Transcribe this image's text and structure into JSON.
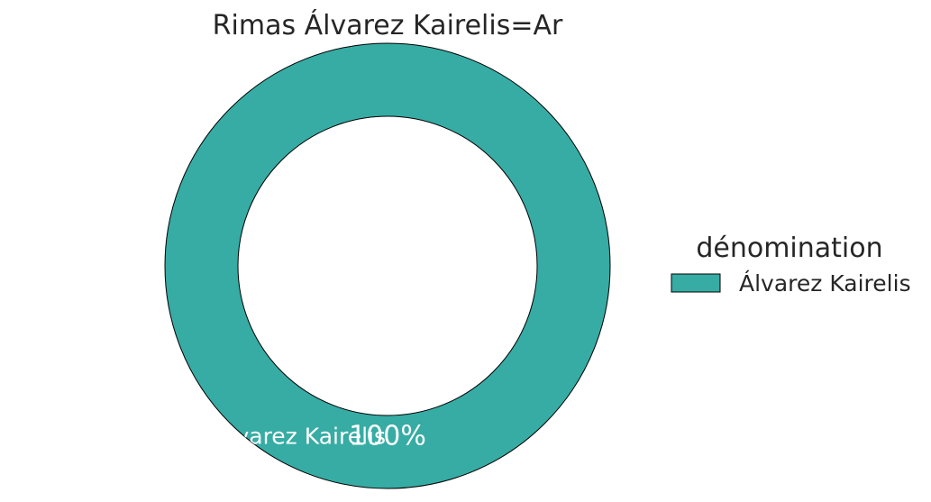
{
  "chart_data": {
    "type": "pie",
    "variant": "donut",
    "title": "Rimas Álvarez Kairelis=Ar",
    "legend": {
      "title": "dénomination",
      "placement": "right"
    },
    "slices": [
      {
        "label": "Álvarez Kairelis",
        "value": 100,
        "percent_label": "100%",
        "color": "#36aca4"
      }
    ]
  }
}
